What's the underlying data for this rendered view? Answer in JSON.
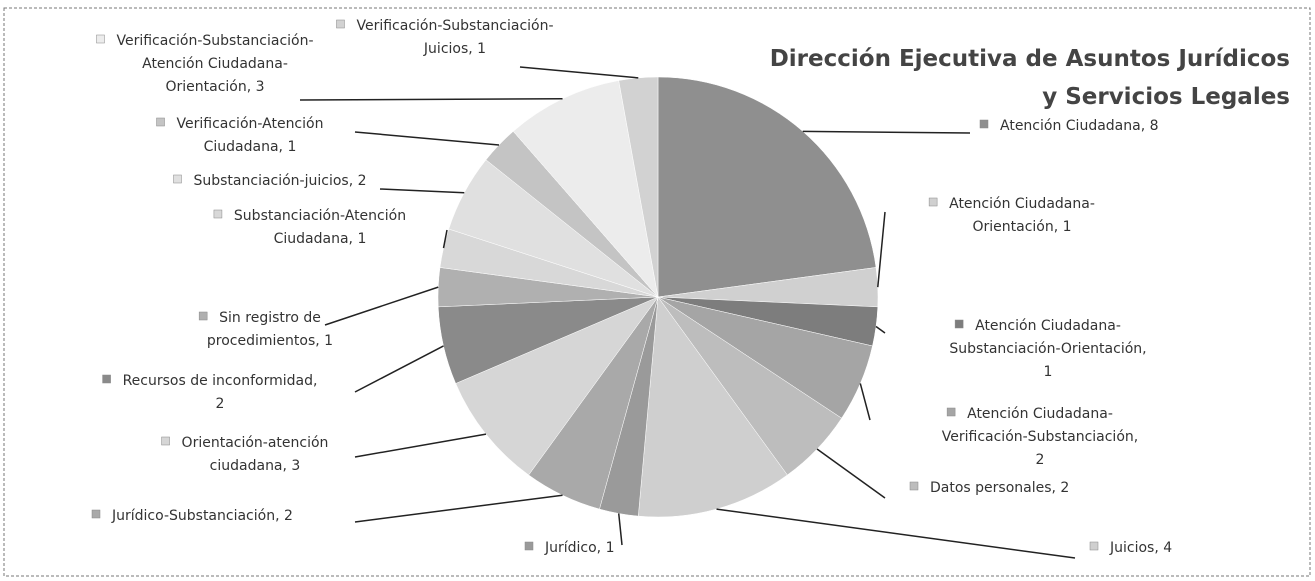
{
  "chart_data": {
    "type": "pie",
    "title": "Dirección Ejecutiva de Asuntos Jurídicos y Servicios Legales",
    "values": [
      8,
      1,
      1,
      2,
      2,
      4,
      1,
      2,
      3,
      2,
      1,
      1,
      2,
      1,
      3,
      1
    ],
    "value_labels": [
      "Atención Ciudadana, 8",
      "Atención Ciudadana-Orientación, 1",
      "Atención Ciudadana-Substanciación-Orientación, 1",
      "Atención Ciudadana-Verificación-Substanciación, 2",
      "Datos personales, 2",
      "Juicios, 4",
      "Jurídico, 1",
      "Jurídico-Substanciación, 2",
      "Orientación-atención ciudadana, 3",
      "Recursos de inconformidad, 2",
      "Sin registro de procedimientos, 1",
      "Substanciación-Atención Ciudadana, 1",
      "Substanciación-juicios, 2",
      "Verificación-Atención Ciudadana, 1",
      "Verificación-Substanciación-Atención Ciudadana-Orientación, 3",
      "Verificación-Substanciación-Juicios, 1"
    ],
    "colors": [
      "#8f8f8f",
      "#d0d0d0",
      "#7d7d7d",
      "#a5a5a5",
      "#bdbdbd",
      "#cfcfcf",
      "#9a9a9a",
      "#a9a9a9",
      "#d6d6d6",
      "#8a8a8a",
      "#b0b0b0",
      "#d8d8d8",
      "#e0e0e0",
      "#c4c4c4",
      "#ececec",
      "#d2d2d2"
    ],
    "legend": true
  }
}
